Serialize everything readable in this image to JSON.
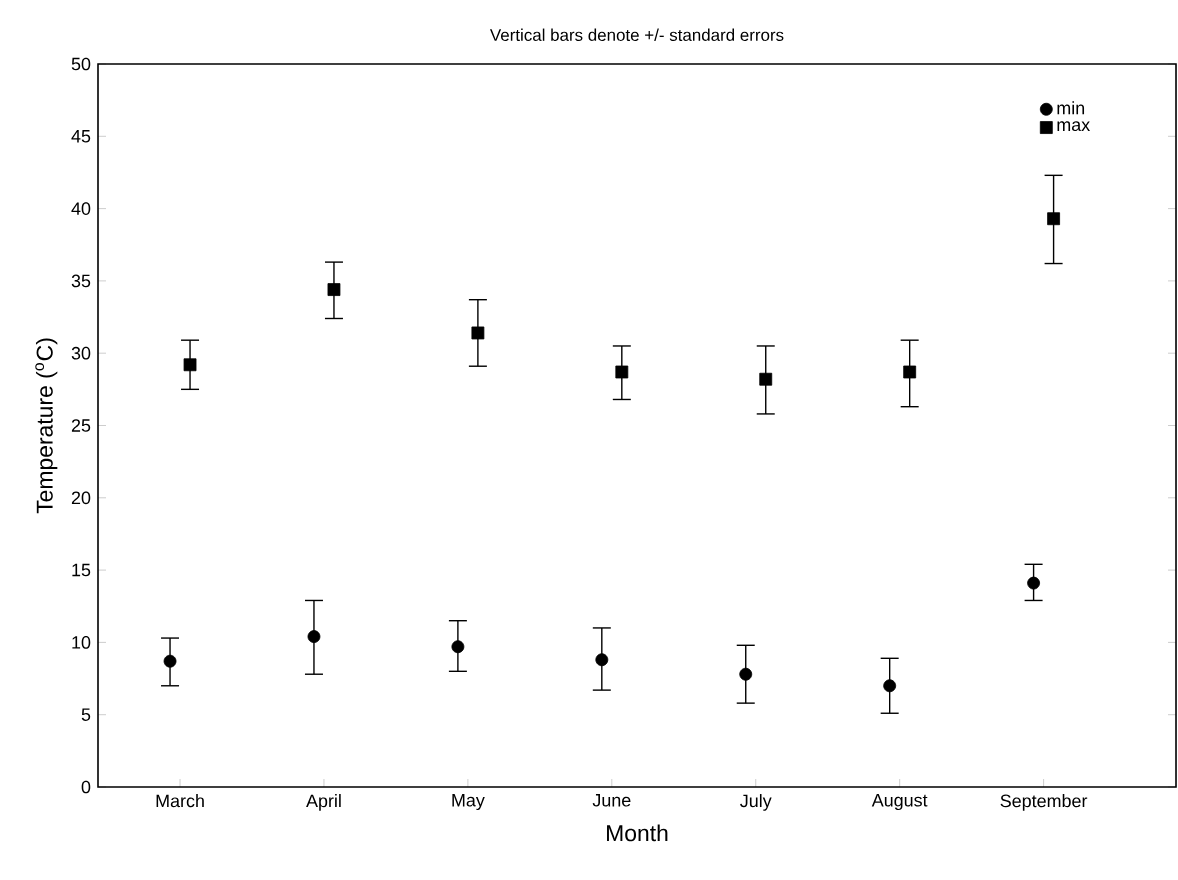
{
  "chart_data": {
    "type": "scatter",
    "title": "Vertical bars denote +/- standard errors",
    "xlabel": "Month",
    "ylabel": "Temperature ($^{o}$C)",
    "categories": [
      "March",
      "April",
      "May",
      "June",
      "July",
      "August",
      "September"
    ],
    "series": [
      {
        "name": "min",
        "color": "#000000",
        "marker": "circle",
        "values": [
          8.7,
          10.4,
          9.7,
          8.8,
          7.8,
          7.0,
          14.1
        ],
        "errors": [
          [
            7.0,
            10.3
          ],
          [
            7.8,
            12.9
          ],
          [
            8.0,
            11.5
          ],
          [
            6.7,
            11.0
          ],
          [
            5.8,
            9.8
          ],
          [
            5.1,
            8.9
          ],
          [
            12.9,
            15.4
          ]
        ]
      },
      {
        "name": "max",
        "color": "#000000",
        "marker": "square",
        "values": [
          29.2,
          34.4,
          31.4,
          28.7,
          28.2,
          28.7,
          39.3
        ],
        "errors": [
          [
            27.5,
            30.9
          ],
          [
            32.4,
            36.3
          ],
          [
            29.1,
            33.7
          ],
          [
            26.8,
            30.5
          ],
          [
            25.8,
            30.5
          ],
          [
            26.3,
            30.9
          ],
          [
            36.2,
            42.3
          ]
        ]
      }
    ],
    "ylim": [
      0,
      50
    ],
    "yticks": [
      0,
      5,
      10,
      15,
      20,
      25,
      30,
      35,
      40,
      45,
      50
    ],
    "grid": false,
    "legend": "top right"
  }
}
